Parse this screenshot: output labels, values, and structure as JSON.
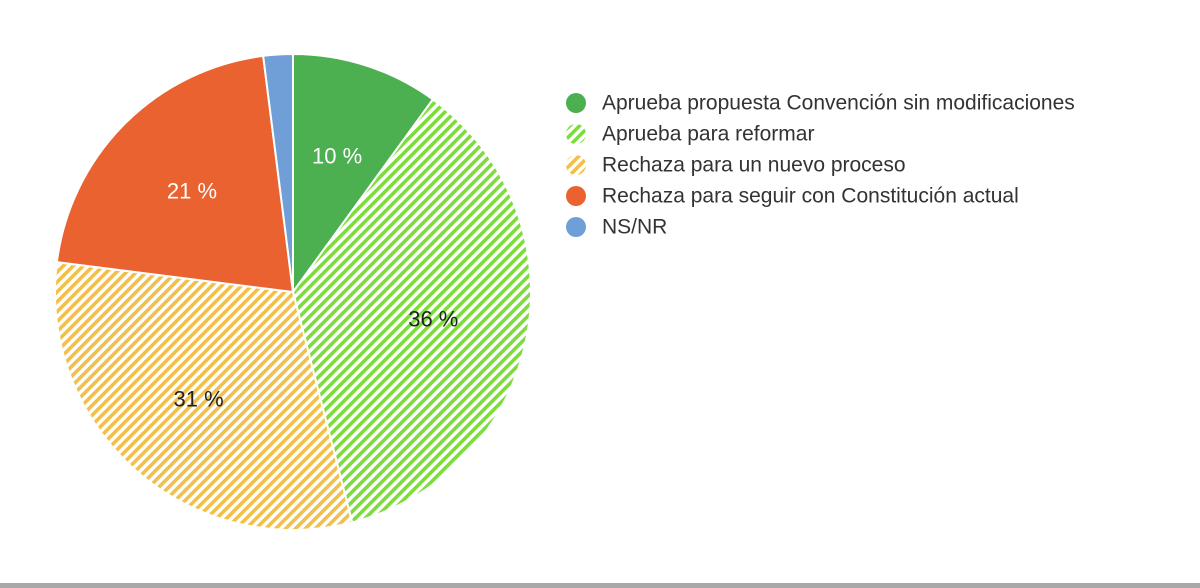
{
  "chart_data": {
    "type": "pie",
    "slices": [
      {
        "label": "Aprueba propuesta Convención sin modificaciones",
        "value": 10,
        "display": "10 %",
        "color": "#4caf50",
        "pattern": "solid",
        "label_color": "#ffffff"
      },
      {
        "label": "Aprueba para reformar",
        "value": 36,
        "display": "36 %",
        "color": "#7ddc3c",
        "pattern": "diagonal-hatch",
        "label_color": "#222222"
      },
      {
        "label": "Rechaza para un nuevo proceso",
        "value": 31,
        "display": "31 %",
        "color": "#f2c04a",
        "pattern": "diagonal-hatch",
        "label_color": "#222222"
      },
      {
        "label": "Rechaza para seguir con Constitución actual",
        "value": 21,
        "display": "21 %",
        "color": "#e9622f",
        "pattern": "solid",
        "label_color": "#ffffff"
      },
      {
        "label": "NS/NR",
        "value": 2,
        "display": "",
        "color": "#6f9fd6",
        "pattern": "solid",
        "label_color": "#ffffff"
      }
    ],
    "legend_position": "right"
  }
}
